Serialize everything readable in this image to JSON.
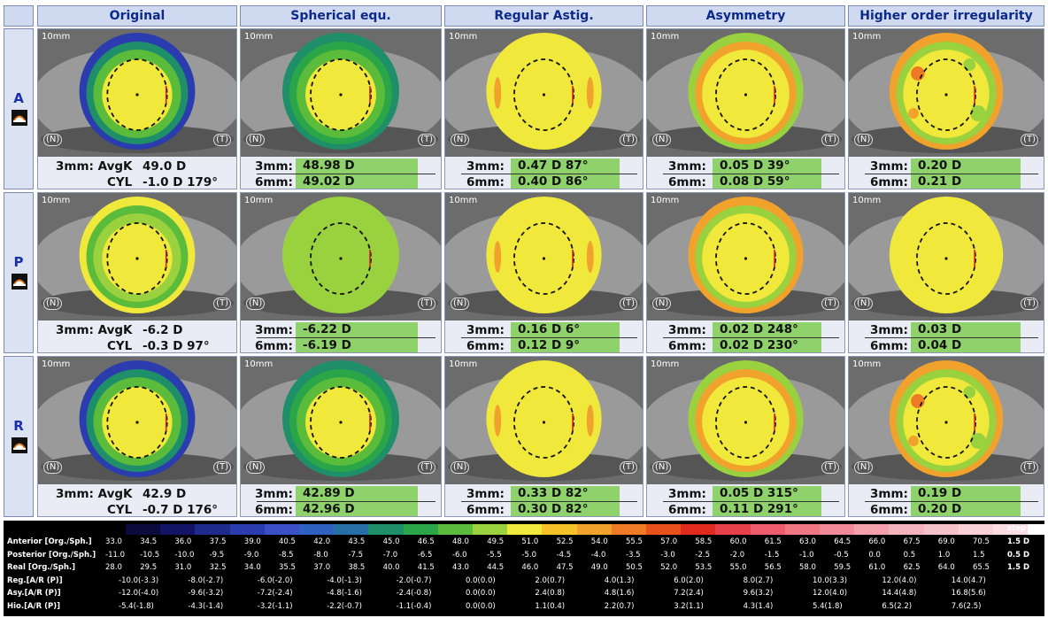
{
  "columns": [
    "Original",
    "Spherical equ.",
    "Regular Astig.",
    "Asymmetry",
    "Higher order irregularity"
  ],
  "rows": [
    {
      "label": "A",
      "original": {
        "l1": "3mm: AvgK",
        "v1": "49.0 D",
        "l2": "CYL",
        "v2": "-1.0 D 179°"
      },
      "sph": [
        {
          "label": "3mm:",
          "value": "48.98 D"
        },
        {
          "label": "6mm:",
          "value": "49.02 D"
        }
      ],
      "reg": [
        {
          "label": "3mm:",
          "value": "0.47 D  87°"
        },
        {
          "label": "6mm:",
          "value": "0.40 D  86°"
        }
      ],
      "asy": [
        {
          "label": "3mm:",
          "value": "0.05 D  39°"
        },
        {
          "label": "6mm:",
          "value": "0.08 D  59°"
        }
      ],
      "hoi": [
        {
          "label": "3mm:",
          "value": "0.20 D"
        },
        {
          "label": "6mm:",
          "value": "0.21 D"
        }
      ]
    },
    {
      "label": "P",
      "original": {
        "l1": "3mm: AvgK",
        "v1": "-6.2 D",
        "l2": "CYL",
        "v2": "-0.3 D 97°"
      },
      "sph": [
        {
          "label": "3mm:",
          "value": "-6.22 D"
        },
        {
          "label": "6mm:",
          "value": "-6.19 D"
        }
      ],
      "reg": [
        {
          "label": "3mm:",
          "value": "0.16 D  6°"
        },
        {
          "label": "6mm:",
          "value": "0.12 D  9°"
        }
      ],
      "asy": [
        {
          "label": "3mm:",
          "value": "0.02 D  248°"
        },
        {
          "label": "6mm:",
          "value": "0.02 D  230°"
        }
      ],
      "hoi": [
        {
          "label": "3mm:",
          "value": "0.03 D"
        },
        {
          "label": "6mm:",
          "value": "0.04 D"
        }
      ]
    },
    {
      "label": "R",
      "original": {
        "l1": "3mm: AvgK",
        "v1": "42.9 D",
        "l2": "CYL",
        "v2": "-0.7 D 176°"
      },
      "sph": [
        {
          "label": "3mm:",
          "value": "42.89 D"
        },
        {
          "label": "6mm:",
          "value": "42.96 D"
        }
      ],
      "reg": [
        {
          "label": "3mm:",
          "value": "0.33 D  82°"
        },
        {
          "label": "6mm:",
          "value": "0.30 D  82°"
        }
      ],
      "asy": [
        {
          "label": "3mm:",
          "value": "0.05 D  315°"
        },
        {
          "label": "6mm:",
          "value": "0.11 D  291°"
        }
      ],
      "hoi": [
        {
          "label": "3mm:",
          "value": "0.19 D"
        },
        {
          "label": "6mm:",
          "value": "0.20 D"
        }
      ]
    }
  ],
  "map_labels": {
    "size": "10mm",
    "nasal": "(N)",
    "temporal": "(T)"
  },
  "scale": {
    "step_header": "step",
    "colors": [
      "#0a0a3c",
      "#141466",
      "#1e2a8c",
      "#2a3cae",
      "#3b4fc6",
      "#2f62c0",
      "#256fa6",
      "#1f8f6a",
      "#2aa548",
      "#5bbb3a",
      "#9ad13e",
      "#f0e83a",
      "#f5c22a",
      "#f0a22c",
      "#ee7a25",
      "#e8501c",
      "#e02a1e",
      "#e8404a",
      "#ec5c6c",
      "#ef7683",
      "#f08a98",
      "#f3a0ac",
      "#f4b2bc",
      "#f6c2ca",
      "#f8d0d6",
      "#fadde2",
      "#ffffff"
    ],
    "rows": [
      {
        "label": "Anterior [Org./Sph.]",
        "values": [
          "33.0",
          "34.5",
          "36.0",
          "37.5",
          "39.0",
          "40.5",
          "42.0",
          "43.5",
          "45.0",
          "46.5",
          "48.0",
          "49.5",
          "51.0",
          "52.5",
          "54.0",
          "55.5",
          "57.0",
          "58.5",
          "60.0",
          "61.5",
          "63.0",
          "64.5",
          "66.0",
          "67.5",
          "69.0",
          "70.5"
        ],
        "step": "1.5 D"
      },
      {
        "label": "Posterior [Org./Sph.]",
        "values": [
          "-11.0",
          "-10.5",
          "-10.0",
          "-9.5",
          "-9.0",
          "-8.5",
          "-8.0",
          "-7.5",
          "-7.0",
          "-6.5",
          "-6.0",
          "-5.5",
          "-5.0",
          "-4.5",
          "-4.0",
          "-3.5",
          "-3.0",
          "-2.5",
          "-2.0",
          "-1.5",
          "-1.0",
          "-0.5",
          "0.0",
          "0.5",
          "1.0",
          "1.5"
        ],
        "step": "0.5 D"
      },
      {
        "label": "Real [Org./Sph.]",
        "values": [
          "28.0",
          "29.5",
          "31.0",
          "32.5",
          "34.0",
          "35.5",
          "37.0",
          "38.5",
          "40.0",
          "41.5",
          "43.0",
          "44.5",
          "46.0",
          "47.5",
          "49.0",
          "50.5",
          "52.0",
          "53.5",
          "55.0",
          "56.5",
          "58.0",
          "59.5",
          "61.0",
          "62.5",
          "64.0",
          "65.5"
        ],
        "step": "1.5 D"
      },
      {
        "label": "Reg.[A/R (P)]",
        "values": [
          "-10.0(-3.3)",
          "-8.0(-2.7)",
          "-6.0(-2.0)",
          "-4.0(-1.3)",
          "-2.0(-0.7)",
          "0.0(0.0)",
          "2.0(0.7)",
          "4.0(1.3)",
          "6.0(2.0)",
          "8.0(2.7)",
          "10.0(3.3)",
          "12.0(4.0)",
          "14.0(4.7)"
        ],
        "step": ""
      },
      {
        "label": "Asy.[A/R (P)]",
        "values": [
          "-12.0(-4.0)",
          "-9.6(-3.2)",
          "-7.2(-2.4)",
          "-4.8(-1.6)",
          "-2.4(-0.8)",
          "0.0(0.0)",
          "2.4(0.8)",
          "4.8(1.6)",
          "7.2(2.4)",
          "9.6(3.2)",
          "12.0(4.0)",
          "14.4(4.8)",
          "16.8(5.6)"
        ],
        "step": ""
      },
      {
        "label": "Hio.[A/R (P)]",
        "values": [
          "-5.4(-1.8)",
          "-4.3(-1.4)",
          "-3.2(-1.1)",
          "-2.2(-0.7)",
          "-1.1(-0.4)",
          "0.0(0.0)",
          "1.1(0.4)",
          "2.2(0.7)",
          "3.2(1.1)",
          "4.3(1.4)",
          "5.4(1.8)",
          "6.5(2.2)",
          "7.6(2.5)"
        ],
        "step": ""
      }
    ]
  },
  "colors": {
    "value_box": "#8fd16b",
    "header_bg": "#cfdaf0",
    "header_text": "#0d2a8a"
  }
}
